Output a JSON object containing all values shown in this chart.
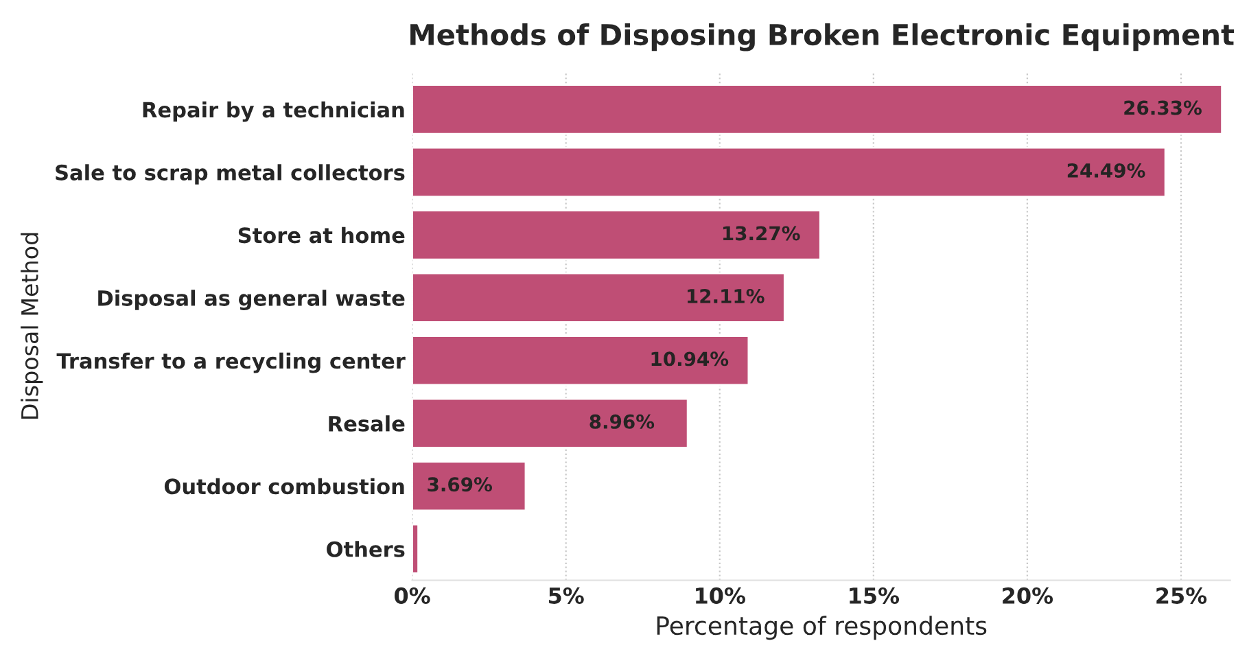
{
  "chart_data": {
    "type": "bar",
    "orientation": "horizontal",
    "title": "Methods of Disposing Broken Electronic Equipment",
    "xlabel": "Percentage of respondents",
    "ylabel": "Disposal Method",
    "categories": [
      "Repair by a technician",
      "Sale to scrap metal collectors",
      "Store at home",
      "Disposal as general waste",
      "Transfer to a recycling center",
      "Resale",
      "Outdoor combustion",
      "Others"
    ],
    "values": [
      26.33,
      24.49,
      13.27,
      12.11,
      10.94,
      8.96,
      3.69,
      0.2
    ],
    "value_labels": [
      "26.33%",
      "24.49%",
      "13.27%",
      "12.11%",
      "10.94%",
      "8.96%",
      "3.69%",
      null
    ],
    "color": "#bf4e75",
    "xlim": [
      0,
      26.6
    ],
    "xticks": [
      {
        "value": 0,
        "label": "0%"
      },
      {
        "value": 5,
        "label": "5%"
      },
      {
        "value": 10,
        "label": "10%"
      },
      {
        "value": 15,
        "label": "15%"
      },
      {
        "value": 20,
        "label": "20%"
      },
      {
        "value": 25,
        "label": "25%"
      }
    ],
    "grid": "x"
  }
}
